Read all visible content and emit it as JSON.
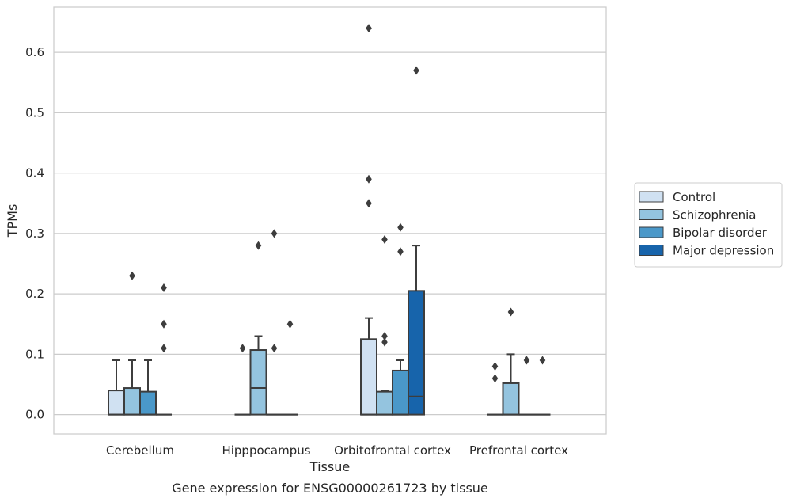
{
  "chart_data": {
    "type": "box",
    "title": "",
    "caption": "Gene expression for ENSG00000261723 by tissue",
    "xlabel": "Tissue",
    "ylabel": "TPMs",
    "ylim": [
      -0.032,
      0.675
    ],
    "yticks": [
      "0.0",
      "0.1",
      "0.2",
      "0.3",
      "0.4",
      "0.5",
      "0.6"
    ],
    "ytick_values": [
      0.0,
      0.1,
      0.2,
      0.3,
      0.4,
      0.5,
      0.6
    ],
    "grid": "horizontal",
    "legend_placement": "right",
    "categories": [
      "Cerebellum",
      "Hipppocampus",
      "Orbitofrontal cortex",
      "Prefrontal cortex"
    ],
    "series": [
      {
        "name": "Control",
        "color": "#d0e1f2",
        "boxes": [
          {
            "q1": 0.0,
            "median": 0.0,
            "q3": 0.04,
            "whisker_low": 0.0,
            "whisker_high": 0.09,
            "outliers": []
          },
          {
            "q1": 0.0,
            "median": 0.0,
            "q3": 0.0,
            "whisker_low": 0.0,
            "whisker_high": 0.0,
            "outliers": [
              0.11
            ]
          },
          {
            "q1": 0.0,
            "median": 0.0,
            "q3": 0.125,
            "whisker_low": 0.0,
            "whisker_high": 0.16,
            "outliers": [
              0.35,
              0.39,
              0.64
            ]
          },
          {
            "q1": 0.0,
            "median": 0.0,
            "q3": 0.0,
            "whisker_low": 0.0,
            "whisker_high": 0.0,
            "outliers": [
              0.06,
              0.08
            ]
          }
        ]
      },
      {
        "name": "Schizophrenia",
        "color": "#94c4df",
        "boxes": [
          {
            "q1": 0.0,
            "median": 0.0,
            "q3": 0.044,
            "whisker_low": 0.0,
            "whisker_high": 0.09,
            "outliers": [
              0.23
            ]
          },
          {
            "q1": 0.0,
            "median": 0.044,
            "q3": 0.107,
            "whisker_low": 0.0,
            "whisker_high": 0.13,
            "outliers": [
              0.28
            ]
          },
          {
            "q1": 0.0,
            "median": 0.0,
            "q3": 0.038,
            "whisker_low": 0.0,
            "whisker_high": 0.04,
            "outliers": [
              0.12,
              0.13,
              0.29
            ]
          },
          {
            "q1": 0.0,
            "median": 0.0,
            "q3": 0.052,
            "whisker_low": 0.0,
            "whisker_high": 0.1,
            "outliers": [
              0.17
            ]
          }
        ]
      },
      {
        "name": "Bipolar disorder",
        "color": "#4a98c9",
        "boxes": [
          {
            "q1": 0.0,
            "median": 0.0,
            "q3": 0.038,
            "whisker_low": 0.0,
            "whisker_high": 0.09,
            "outliers": []
          },
          {
            "q1": 0.0,
            "median": 0.0,
            "q3": 0.0,
            "whisker_low": 0.0,
            "whisker_high": 0.0,
            "outliers": [
              0.11,
              0.3
            ]
          },
          {
            "q1": 0.0,
            "median": 0.0,
            "q3": 0.073,
            "whisker_low": 0.0,
            "whisker_high": 0.09,
            "outliers": [
              0.27,
              0.31
            ]
          },
          {
            "q1": 0.0,
            "median": 0.0,
            "q3": 0.0,
            "whisker_low": 0.0,
            "whisker_high": 0.0,
            "outliers": [
              0.09
            ]
          }
        ]
      },
      {
        "name": "Major depression",
        "color": "#1764ab",
        "boxes": [
          {
            "q1": 0.0,
            "median": 0.0,
            "q3": 0.0,
            "whisker_low": 0.0,
            "whisker_high": 0.0,
            "outliers": [
              0.11,
              0.15,
              0.21
            ]
          },
          {
            "q1": 0.0,
            "median": 0.0,
            "q3": 0.0,
            "whisker_low": 0.0,
            "whisker_high": 0.0,
            "outliers": [
              0.15
            ]
          },
          {
            "q1": 0.0,
            "median": 0.03,
            "q3": 0.205,
            "whisker_low": 0.0,
            "whisker_high": 0.28,
            "outliers": [
              0.57
            ]
          },
          {
            "q1": 0.0,
            "median": 0.0,
            "q3": 0.0,
            "whisker_low": 0.0,
            "whisker_high": 0.0,
            "outliers": [
              0.09
            ]
          }
        ]
      }
    ]
  }
}
